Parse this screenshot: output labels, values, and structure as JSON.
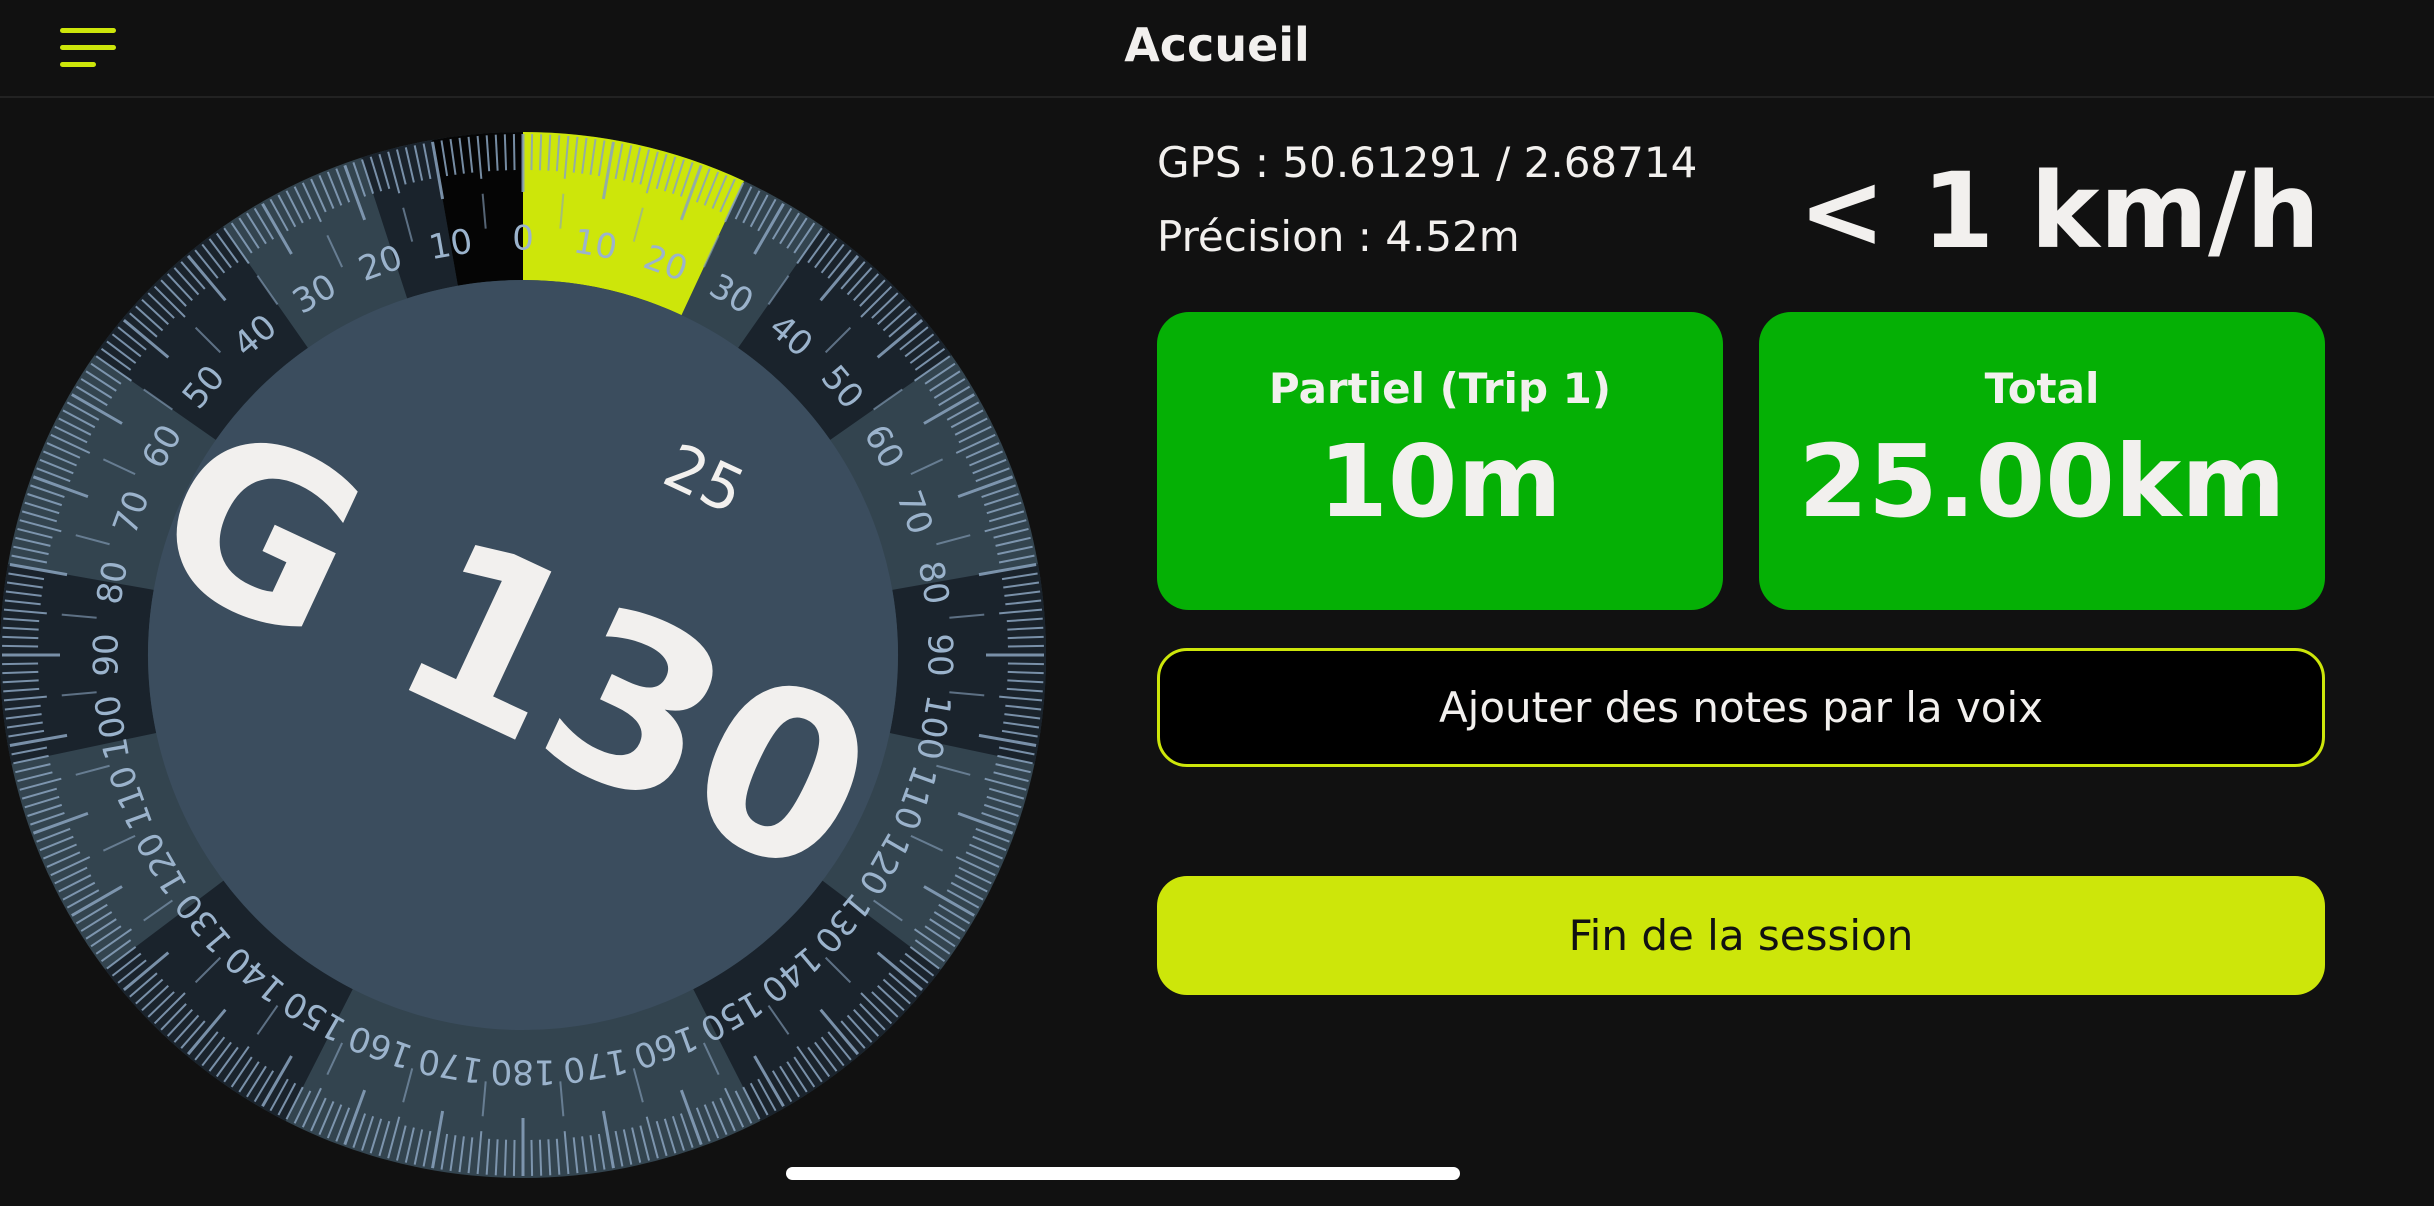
{
  "header": {
    "title": "Accueil",
    "menu_icon": "hamburger-menu-icon"
  },
  "dial": {
    "labels": [
      "0",
      "10",
      "20",
      "30",
      "40",
      "50",
      "60",
      "70",
      "80",
      "90",
      "100",
      "110",
      "120",
      "130",
      "140",
      "150",
      "160",
      "170",
      "180"
    ],
    "highlight_value": 25,
    "heading_value": "25",
    "heading_label": "G 130",
    "colors": {
      "highlight": "#cde60a",
      "ticks": "#8aa4bf",
      "inner": "#3b4d5e",
      "band_light": "#33444f",
      "band_dark": "#1a232c"
    }
  },
  "info": {
    "gps": "GPS :  50.61291 / 2.68714",
    "precision": "Précision : 4.52m",
    "speed": "< 1 km/h"
  },
  "cards": {
    "partial": {
      "label": "Partiel  (Trip 1)",
      "value": "10m"
    },
    "total": {
      "label": "Total",
      "value": "25.00km"
    }
  },
  "buttons": {
    "voice_notes": "Ajouter des notes par la voix",
    "end_session": "Fin de la session"
  },
  "colors": {
    "accent": "#cde60a",
    "card_green": "#05b005",
    "background": "#111111"
  }
}
